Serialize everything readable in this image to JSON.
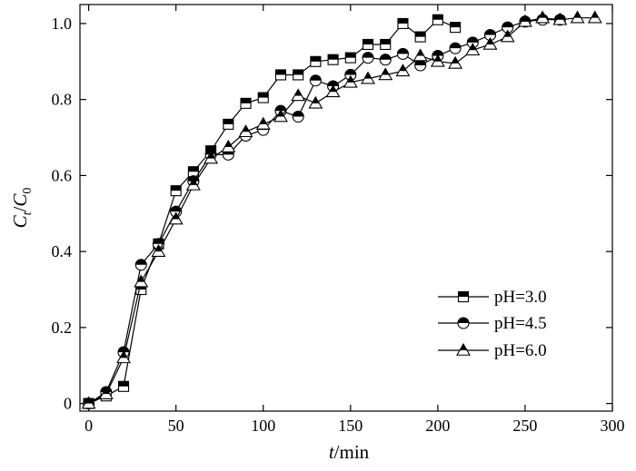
{
  "chart_data": {
    "type": "line",
    "xlabel": "t/min",
    "ylabel": "Ct/C0",
    "xlim": [
      -5,
      300
    ],
    "ylim": [
      -0.02,
      1.05
    ],
    "xticks": [
      0,
      50,
      100,
      150,
      200,
      250,
      300
    ],
    "yticks": [
      0,
      0.2,
      0.4,
      0.6,
      0.8,
      1.0
    ],
    "ytick_labels": [
      "0",
      "0.2",
      "0.4",
      "0.6",
      "0.8",
      "1.0"
    ],
    "grid": false,
    "legend_position": "lower-right",
    "series": [
      {
        "name": "pH=3.0",
        "marker": "square",
        "x": [
          0,
          10,
          20,
          30,
          40,
          50,
          60,
          70,
          80,
          90,
          100,
          110,
          120,
          130,
          140,
          150,
          160,
          170,
          180,
          190,
          200,
          210
        ],
        "y": [
          0.0,
          0.02,
          0.045,
          0.3,
          0.42,
          0.56,
          0.61,
          0.665,
          0.735,
          0.79,
          0.805,
          0.865,
          0.865,
          0.9,
          0.905,
          0.91,
          0.945,
          0.945,
          1.0,
          0.965,
          1.01,
          0.99
        ]
      },
      {
        "name": "pH=4.5",
        "marker": "circle",
        "x": [
          0,
          10,
          20,
          30,
          40,
          50,
          60,
          70,
          80,
          90,
          100,
          110,
          120,
          130,
          140,
          150,
          160,
          170,
          180,
          190,
          200,
          210,
          220,
          230,
          240,
          250,
          260,
          270
        ],
        "y": [
          0.0,
          0.03,
          0.135,
          0.365,
          0.42,
          0.505,
          0.585,
          0.655,
          0.655,
          0.705,
          0.72,
          0.77,
          0.755,
          0.85,
          0.835,
          0.865,
          0.91,
          0.905,
          0.92,
          0.89,
          0.915,
          0.935,
          0.95,
          0.97,
          0.99,
          1.005,
          1.01,
          1.01
        ]
      },
      {
        "name": "pH=6.0",
        "marker": "triangle",
        "x": [
          0,
          10,
          20,
          30,
          40,
          50,
          60,
          70,
          80,
          90,
          100,
          110,
          120,
          130,
          140,
          150,
          160,
          170,
          180,
          190,
          200,
          210,
          220,
          230,
          240,
          250,
          260,
          270,
          280,
          290
        ],
        "y": [
          0.0,
          0.025,
          0.12,
          0.32,
          0.4,
          0.485,
          0.575,
          0.645,
          0.675,
          0.715,
          0.735,
          0.755,
          0.81,
          0.79,
          0.82,
          0.845,
          0.855,
          0.865,
          0.875,
          0.915,
          0.9,
          0.895,
          0.93,
          0.945,
          0.965,
          1.005,
          1.015,
          1.01,
          1.015,
          1.015
        ]
      }
    ]
  }
}
